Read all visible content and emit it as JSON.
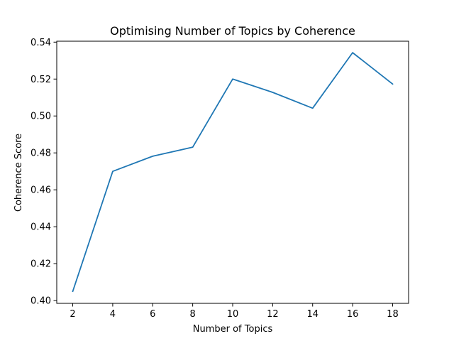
{
  "chart_data": {
    "type": "line",
    "title": "Optimising Number of Topics by Coherence",
    "xlabel": "Number of Topics",
    "ylabel": "Coherence Score",
    "x": [
      2,
      4,
      6,
      8,
      10,
      12,
      14,
      16,
      18
    ],
    "series": [
      {
        "values": [
          0.405,
          0.47,
          0.4782,
          0.4831,
          0.52,
          0.5128,
          0.5042,
          0.5343,
          0.5173
        ],
        "color": "#1f77b4"
      }
    ],
    "xlim": [
      1.2,
      18.8
    ],
    "ylim": [
      0.3985,
      0.5405
    ],
    "xticks": [
      2,
      4,
      6,
      8,
      10,
      12,
      14,
      16,
      18
    ],
    "yticks": [
      0.4,
      0.42,
      0.44,
      0.46,
      0.48,
      0.5,
      0.52,
      0.54
    ],
    "ytick_labels": [
      "0.40",
      "0.42",
      "0.44",
      "0.46",
      "0.48",
      "0.50",
      "0.52",
      "0.54"
    ],
    "grid": false,
    "legend": "none"
  }
}
